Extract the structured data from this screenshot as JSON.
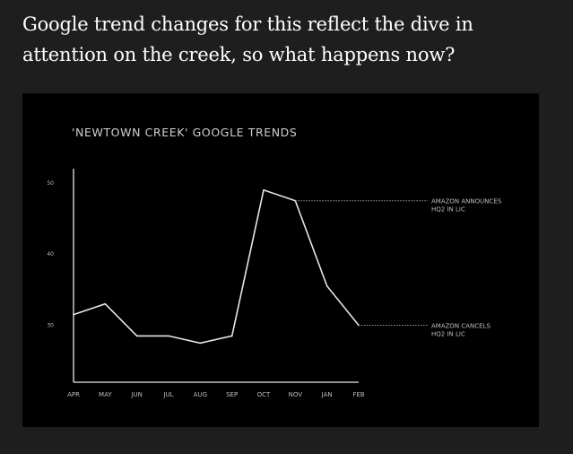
{
  "heading": "Google trend changes for this reflect the dive in attention on the creek, so what happens now?",
  "colors": {
    "page_bg": "#1e1e1e",
    "panel_bg": "#000000",
    "line": "#e6e6e6",
    "text": "#bdbdbd"
  },
  "chart_data": {
    "type": "line",
    "title": "'NEWTOWN CREEK' GOOGLE TRENDS",
    "xlabel": "",
    "ylabel": "",
    "categories": [
      "APR",
      "MAY",
      "JUN",
      "JUL",
      "AUG",
      "SEP",
      "OCT",
      "NOV",
      "JAN",
      "FEB"
    ],
    "values": [
      31.5,
      33,
      28.5,
      28.5,
      27.5,
      28.5,
      49,
      47.5,
      35.5,
      30
    ],
    "ylim": [
      22,
      52
    ],
    "yticks": [
      30,
      40,
      50
    ],
    "grid": false,
    "annotations": [
      {
        "category": "NOV",
        "value": 47.5,
        "line1": "AMAZON ANNOUNCES",
        "line2": "HQ2 IN LIC"
      },
      {
        "category": "FEB",
        "value": 30,
        "line1": "AMAZON CANCELS",
        "line2": "HQ2 IN LIC"
      }
    ]
  }
}
